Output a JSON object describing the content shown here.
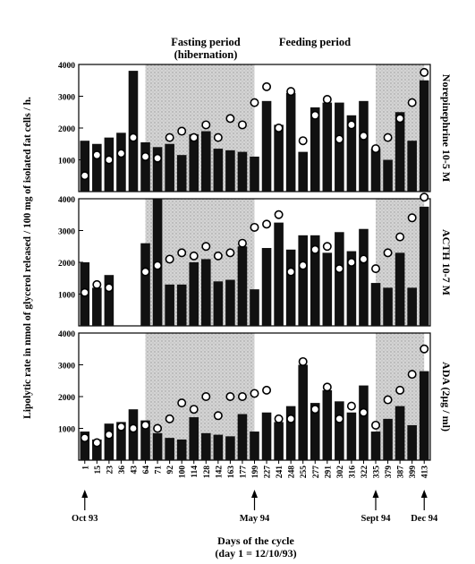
{
  "chart_data": {
    "type": "bar",
    "periods": [
      {
        "label_line1": "Fasting period",
        "label_line2": "(hibernation)",
        "start_day": 64,
        "end_day": 199
      },
      {
        "label_line1": "Feeding period",
        "label_line2": "",
        "start_day": 335,
        "end_day": 413
      }
    ],
    "ylabel": "Lipolytic rate in nmol of glycerol released / 100 mg of isolated fat cells / h.",
    "xlabel_line1": "Days of the cycle",
    "xlabel_line2": "(day 1 = 12/10/93)",
    "categories": [
      "1",
      "15",
      "23",
      "36",
      "43",
      "64",
      "71",
      "92",
      "100",
      "114",
      "128",
      "142",
      "163",
      "177",
      "199",
      "227",
      "241",
      "248",
      "255",
      "277",
      "291",
      "302",
      "316",
      "322",
      "335",
      "379",
      "387",
      "399",
      "413"
    ],
    "shaded_spans": [
      [
        5,
        14
      ],
      [
        24,
        28
      ]
    ],
    "date_markers": [
      {
        "label": "Oct 93",
        "index": 0
      },
      {
        "label": "May 94",
        "index": 14
      },
      {
        "label": "Sept 94",
        "index": 24
      },
      {
        "label": "Dec 94",
        "index": 28
      }
    ],
    "panels": [
      {
        "name": "Norepinephrine 10-5 M",
        "ylim": [
          0,
          4000
        ],
        "yticks": [
          "1000",
          "2000",
          "3000",
          "4000"
        ],
        "bars": [
          1600,
          1500,
          1700,
          1850,
          3800,
          1550,
          1400,
          1500,
          1150,
          1800,
          1900,
          1350,
          1300,
          1250,
          1100,
          2850,
          2100,
          3100,
          1250,
          2650,
          2800,
          2800,
          2400,
          2850,
          1350,
          1000,
          2500,
          1600,
          3500
        ],
        "circles": [
          500,
          1150,
          1000,
          1200,
          1700,
          1100,
          1050,
          1700,
          1900,
          1700,
          2100,
          1700,
          2300,
          2100,
          2800,
          3300,
          2000,
          3150,
          1600,
          2400,
          2900,
          1650,
          2100,
          1750,
          1350,
          1700,
          2300,
          2800,
          3750
        ]
      },
      {
        "name": "ACTH 10-7 M",
        "ylim": [
          0,
          4000
        ],
        "yticks": [
          "1000",
          "2000",
          "3000",
          "4000"
        ],
        "bars": [
          2000,
          1200,
          1600,
          null,
          null,
          2600,
          4000,
          1300,
          1300,
          2000,
          2100,
          1400,
          1450,
          2500,
          1150,
          2450,
          3250,
          2400,
          2850,
          2850,
          2300,
          2950,
          2350,
          3050,
          1350,
          1200,
          2300,
          1200,
          3750
        ],
        "circles": [
          1050,
          1300,
          1200,
          null,
          null,
          1700,
          1900,
          2100,
          2300,
          2200,
          2500,
          2200,
          2300,
          2600,
          3100,
          3200,
          3500,
          1700,
          1900,
          2400,
          2500,
          1800,
          2000,
          2100,
          1800,
          2300,
          2800,
          3400,
          4050
        ]
      },
      {
        "name": "ADA (2µg / ml)",
        "ylim": [
          0,
          4000
        ],
        "yticks": [
          "1000",
          "2000",
          "3000",
          "4000"
        ],
        "bars": [
          900,
          650,
          1150,
          1200,
          1600,
          1250,
          850,
          700,
          650,
          1350,
          850,
          800,
          750,
          1450,
          900,
          1500,
          1200,
          1700,
          3000,
          1800,
          2200,
          1850,
          1500,
          2350,
          900,
          1300,
          1700,
          1100,
          2800
        ],
        "circles": [
          700,
          550,
          800,
          1050,
          1000,
          1100,
          1000,
          1300,
          1800,
          1600,
          2000,
          1400,
          2000,
          2000,
          2100,
          2200,
          1300,
          1300,
          3100,
          1600,
          2300,
          1300,
          1700,
          1500,
          1100,
          1900,
          2200,
          2700,
          3500
        ]
      }
    ]
  }
}
